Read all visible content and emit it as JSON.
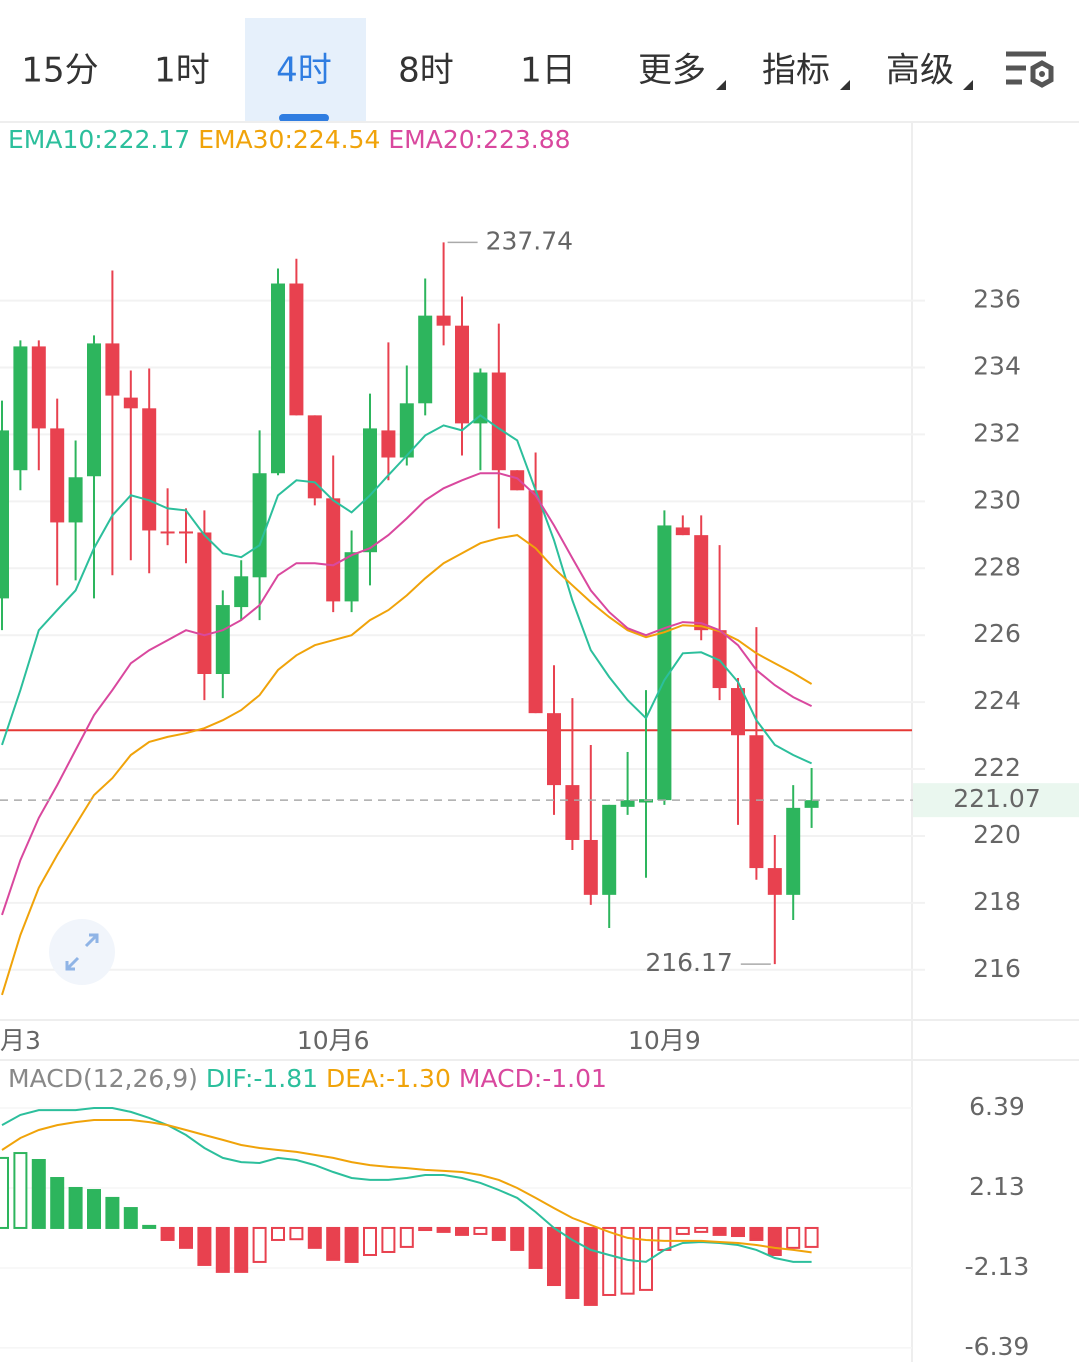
{
  "tabs": [
    "15分",
    "1时",
    "4时",
    "8时",
    "1日",
    "更多",
    "指标",
    "高级"
  ],
  "active_tab": 2,
  "chart_data": [
    {
      "type": "candlestick",
      "categories": [
        null,
        "月3",
        null,
        null,
        null,
        null,
        null,
        null,
        null,
        null,
        null,
        null,
        null,
        null,
        null,
        null,
        null,
        null,
        "10月6",
        null,
        null,
        null,
        null,
        null,
        null,
        null,
        null,
        null,
        null,
        null,
        null,
        null,
        null,
        null,
        null,
        null,
        "10月9",
        null,
        null,
        null,
        null,
        null,
        null,
        null,
        null
      ],
      "open": [
        227.1,
        230.93,
        234.63,
        232.18,
        229.37,
        230.75,
        234.72,
        233.1,
        232.78,
        229.1,
        229.1,
        229.07,
        224.84,
        226.84,
        227.73,
        230.84,
        236.51,
        232.57,
        230.09,
        227.01,
        228.48,
        232.12,
        231.31,
        232.93,
        235.55,
        235.25,
        232.33,
        233.85,
        230.93,
        230.33,
        223.67,
        221.52,
        219.88,
        218.24,
        220.87,
        221.0,
        221.07,
        229.22,
        228.99,
        226.15,
        224.42,
        223.01,
        219.04,
        218.24,
        220.84
      ],
      "high": [
        233.01,
        234.81,
        234.81,
        233.07,
        231.82,
        234.96,
        236.9,
        233.91,
        233.97,
        230.39,
        229.79,
        229.73,
        227.34,
        228.24,
        232.12,
        236.96,
        237.25,
        232.57,
        231.37,
        229.13,
        233.22,
        234.75,
        234.06,
        236.66,
        237.74,
        236.12,
        233.97,
        235.31,
        230.93,
        231.46,
        225.1,
        224.12,
        222.72,
        220.93,
        222.51,
        224.36,
        229.73,
        229.58,
        229.58,
        228.69,
        224.72,
        226.24,
        220.03,
        221.52,
        222.03
      ],
      "low": [
        226.15,
        230.33,
        230.93,
        227.49,
        227.64,
        227.1,
        227.79,
        228.24,
        227.85,
        228.69,
        228.15,
        224.06,
        224.12,
        226.45,
        226.45,
        230.78,
        232.57,
        229.88,
        226.69,
        226.69,
        227.49,
        230.63,
        231.07,
        232.57,
        234.66,
        231.37,
        230.93,
        229.19,
        230.33,
        223.67,
        220.63,
        219.58,
        217.94,
        217.25,
        220.63,
        218.75,
        220.93,
        228.99,
        225.85,
        224.06,
        220.33,
        218.69,
        216.17,
        217.49,
        220.24
      ],
      "close": [
        232.12,
        234.63,
        232.18,
        229.37,
        230.72,
        234.72,
        233.16,
        232.78,
        229.13,
        229.04,
        229.04,
        224.84,
        226.9,
        227.76,
        230.84,
        236.51,
        232.57,
        230.09,
        227.01,
        228.48,
        232.18,
        231.31,
        232.93,
        235.55,
        235.25,
        232.33,
        233.85,
        230.93,
        230.33,
        223.67,
        221.52,
        219.88,
        218.24,
        220.93,
        221.07,
        221.1,
        229.28,
        228.99,
        226.15,
        224.42,
        223.01,
        219.04,
        218.24,
        220.84,
        221.07
      ],
      "up_color": "#2db55d",
      "down_color": "#e8414f",
      "series": [
        {
          "name": "EMA10",
          "label": "EMA10:222.17",
          "color": "#2cbf9c",
          "values": [
            222.72,
            224.36,
            226.15,
            226.75,
            227.34,
            228.6,
            229.58,
            230.18,
            230.03,
            229.79,
            229.73,
            228.99,
            228.45,
            228.33,
            228.69,
            230.18,
            230.63,
            230.57,
            230.03,
            229.67,
            230.18,
            230.78,
            231.37,
            231.97,
            232.27,
            232.12,
            232.57,
            232.18,
            231.82,
            230.33,
            228.84,
            227.04,
            225.55,
            224.75,
            224.06,
            223.52,
            224.66,
            225.46,
            225.49,
            225.25,
            224.6,
            223.46,
            222.72,
            222.42,
            222.17
          ]
        },
        {
          "name": "EMA30",
          "label": "EMA30:224.54",
          "color": "#f0a30a",
          "values": [
            215.25,
            217.04,
            218.45,
            219.43,
            220.33,
            221.22,
            221.73,
            222.42,
            222.81,
            222.96,
            223.07,
            223.22,
            223.46,
            223.76,
            224.21,
            224.96,
            225.4,
            225.7,
            225.85,
            226.0,
            226.45,
            226.75,
            227.19,
            227.7,
            228.15,
            228.45,
            228.75,
            228.9,
            228.99,
            228.6,
            228.0,
            227.49,
            226.99,
            226.54,
            226.15,
            225.94,
            226.09,
            226.3,
            226.27,
            226.12,
            225.85,
            225.46,
            225.16,
            224.87,
            224.54
          ]
        },
        {
          "name": "EMA20",
          "label": "EMA20:223.88",
          "color": "#d9489e",
          "values": [
            217.64,
            219.28,
            220.54,
            221.52,
            222.57,
            223.61,
            224.36,
            225.16,
            225.55,
            225.85,
            226.15,
            226.0,
            226.15,
            226.45,
            226.9,
            227.79,
            228.15,
            228.15,
            228.09,
            228.39,
            228.6,
            228.99,
            229.49,
            230.03,
            230.39,
            230.63,
            230.84,
            230.84,
            230.69,
            230.18,
            229.28,
            228.3,
            227.34,
            226.69,
            226.21,
            226.0,
            226.21,
            226.39,
            226.36,
            226.15,
            225.7,
            224.96,
            224.51,
            224.15,
            223.88
          ]
        }
      ],
      "ylim": [
        214.5,
        240.5
      ],
      "yticks": [
        216,
        218,
        220,
        222,
        224,
        226,
        228,
        230,
        232,
        234,
        236
      ],
      "grid": true,
      "reference_line": {
        "value": 223.16,
        "color": "#e53935"
      }
    },
    {
      "type": "macd",
      "subtitle": "MACD(12,26,9)",
      "values": [
        3.73,
        3.99,
        3.62,
        2.66,
        2.13,
        2.02,
        1.6,
        1.06,
        0.11,
        -0.64,
        -1.06,
        -1.97,
        -2.34,
        -2.34,
        -1.81,
        -0.64,
        -0.6,
        -1.06,
        -1.7,
        -1.81,
        -1.44,
        -1.28,
        -1.01,
        -0.11,
        -0.21,
        -0.37,
        -0.32,
        -0.64,
        -1.17,
        -2.13,
        -3.04,
        -3.73,
        -4.1,
        -3.57,
        -3.5,
        -3.3,
        -1.17,
        -0.32,
        -0.21,
        -0.37,
        -0.43,
        -0.64,
        -1.44,
        -1.06,
        -1.01
      ],
      "label": "MACD:-1.01",
      "label_color": "#d9489e",
      "up_color": "#2db55d",
      "down_color": "#e8414f",
      "series": [
        {
          "name": "DIF",
          "label": "DIF:-1.81",
          "color": "#2cbf9c",
          "values": [
            5.48,
            6.02,
            6.28,
            6.28,
            6.28,
            6.39,
            6.39,
            6.18,
            5.86,
            5.48,
            4.95,
            4.26,
            3.73,
            3.51,
            3.46,
            3.73,
            3.62,
            3.35,
            2.98,
            2.66,
            2.56,
            2.56,
            2.66,
            2.82,
            2.82,
            2.66,
            2.4,
            2.02,
            1.6,
            0.85,
            0,
            -0.64,
            -1.17,
            -1.44,
            -1.7,
            -1.81,
            -1.17,
            -0.8,
            -0.75,
            -0.8,
            -0.91,
            -1.17,
            -1.6,
            -1.81,
            -1.81
          ]
        },
        {
          "name": "DEA",
          "label": "DEA:-1.30",
          "color": "#f0a30a",
          "values": [
            4.15,
            4.79,
            5.22,
            5.48,
            5.64,
            5.75,
            5.75,
            5.75,
            5.64,
            5.48,
            5.22,
            4.95,
            4.69,
            4.42,
            4.26,
            4.15,
            4.05,
            3.89,
            3.73,
            3.51,
            3.35,
            3.25,
            3.19,
            3.09,
            3.04,
            2.98,
            2.82,
            2.56,
            2.13,
            1.6,
            1.06,
            0.53,
            0.16,
            -0.21,
            -0.53,
            -0.64,
            -0.69,
            -0.69,
            -0.69,
            -0.75,
            -0.8,
            -0.91,
            -1.06,
            -1.17,
            -1.3
          ]
        }
      ],
      "ylim": [
        -7.14,
        8.68
      ],
      "yticks": [
        6.39,
        2.13,
        -2.13,
        -6.39
      ],
      "grid": true
    }
  ]
}
